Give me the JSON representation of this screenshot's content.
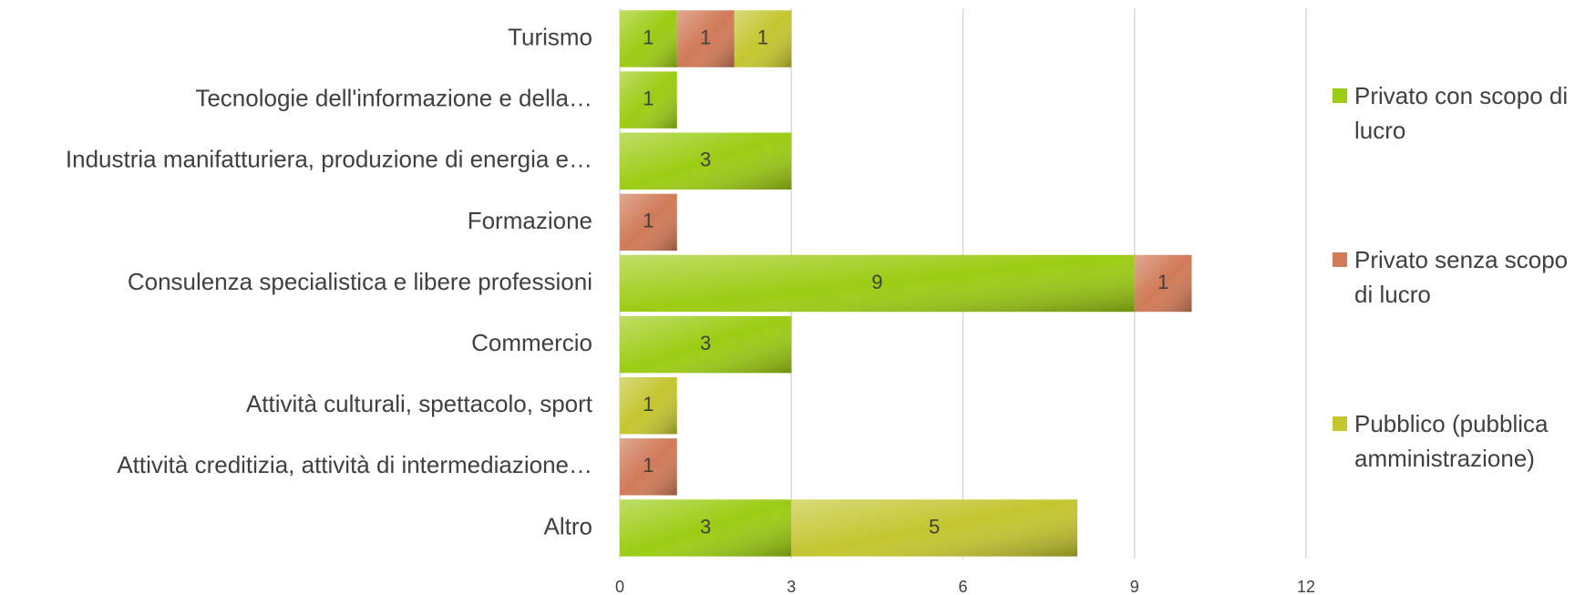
{
  "chart_data": {
    "type": "stacked_bar_horizontal",
    "categories": [
      "Turismo",
      "Tecnologie dell'informazione e della…",
      "Industria manifatturiera, produzione di energia e…",
      "Formazione",
      "Consulenza specialistica e libere professioni",
      "Commercio",
      "Attività culturali, spettacolo, sport",
      "Attività creditizia, attività di intermediazione…",
      "Altro"
    ],
    "series": [
      {
        "name": "Privato con scopo di lucro",
        "color": "#9ccc14",
        "values": [
          1,
          1,
          3,
          null,
          9,
          3,
          null,
          null,
          3
        ]
      },
      {
        "name": "Privato senza scopo di lucro",
        "color": "#d07a58",
        "values": [
          1,
          null,
          null,
          1,
          1,
          null,
          null,
          1,
          null
        ]
      },
      {
        "name": "Pubblico (pubblica amministrazione)",
        "color": "#c4c630",
        "values": [
          1,
          null,
          null,
          null,
          null,
          null,
          1,
          null,
          5
        ]
      }
    ],
    "xlim": [
      0,
      12
    ],
    "xticks": [
      0,
      3,
      6,
      9,
      12
    ],
    "grid": true,
    "legend": "right"
  }
}
